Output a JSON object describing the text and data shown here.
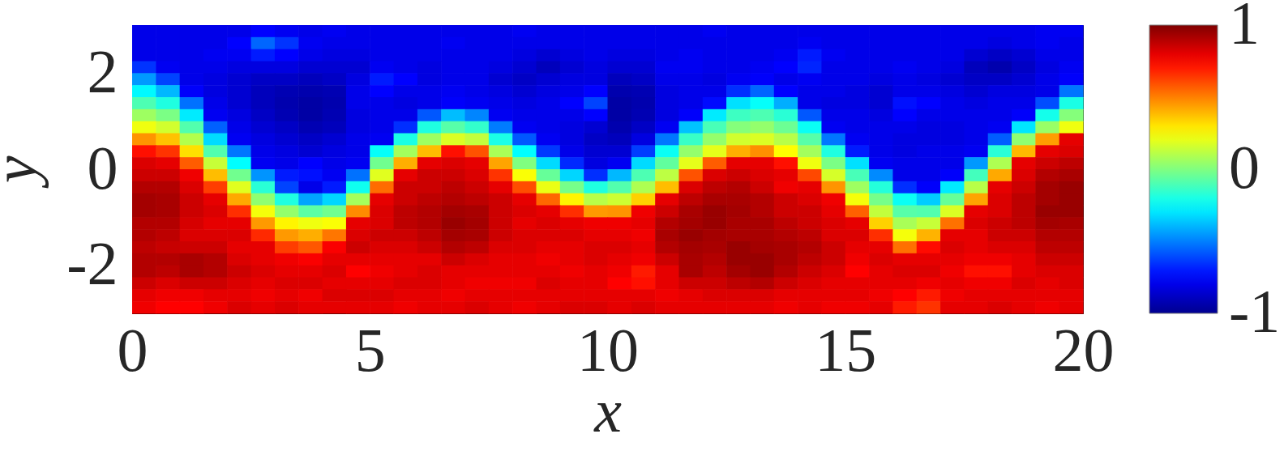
{
  "chart_data": {
    "type": "heatmap",
    "xlabel": "x",
    "ylabel": "y",
    "xlim": [
      0,
      20
    ],
    "xticks": [
      0,
      5,
      10,
      15,
      20
    ],
    "ylim": [
      -3,
      3
    ],
    "yticks": [
      -2,
      0,
      2
    ],
    "clim": [
      -1,
      1
    ],
    "cticks": [
      -1,
      0,
      1
    ],
    "x": [
      0.25,
      0.75,
      1.25,
      1.75,
      2.25,
      2.75,
      3.25,
      3.75,
      4.25,
      4.75,
      5.25,
      5.75,
      6.25,
      6.75,
      7.25,
      7.75,
      8.25,
      8.75,
      9.25,
      9.75,
      10.25,
      10.75,
      11.25,
      11.75,
      12.25,
      12.75,
      13.25,
      13.75,
      14.25,
      14.75,
      15.25,
      15.75,
      16.25,
      16.75,
      17.25,
      17.75,
      18.25,
      18.75,
      19.25,
      19.75
    ],
    "y": [
      2.875,
      2.625,
      2.375,
      2.125,
      1.875,
      1.625,
      1.375,
      1.125,
      0.875,
      0.625,
      0.375,
      0.125,
      -0.125,
      -0.375,
      -0.625,
      -0.875,
      -1.125,
      -1.375,
      -1.625,
      -1.875,
      -2.125,
      -2.375,
      -2.625,
      -2.875
    ],
    "cells": [
      [
        -0.8,
        -0.8,
        -0.8,
        -0.8,
        -0.8,
        -0.75,
        -0.78,
        -0.8,
        -0.78,
        -0.8,
        -0.8,
        -0.8,
        -0.8,
        -0.8,
        -0.8,
        -0.8,
        -0.78,
        -0.8,
        -0.8,
        -0.8,
        -0.8,
        -0.8,
        -0.8,
        -0.8,
        -0.78,
        -0.8,
        -0.8,
        -0.8,
        -0.8,
        -0.8,
        -0.8,
        -0.8,
        -0.8,
        -0.8,
        -0.8,
        -0.8,
        -0.8,
        -0.8,
        -0.78,
        -0.78
      ],
      [
        -0.8,
        -0.8,
        -0.8,
        -0.8,
        -0.75,
        -0.55,
        -0.65,
        -0.78,
        -0.8,
        -0.8,
        -0.8,
        -0.8,
        -0.8,
        -0.78,
        -0.8,
        -0.8,
        -0.8,
        -0.8,
        -0.8,
        -0.8,
        -0.8,
        -0.8,
        -0.8,
        -0.8,
        -0.8,
        -0.8,
        -0.8,
        -0.8,
        -0.78,
        -0.8,
        -0.8,
        -0.8,
        -0.8,
        -0.8,
        -0.8,
        -0.8,
        -0.82,
        -0.8,
        -0.78,
        -0.8
      ],
      [
        -0.8,
        -0.8,
        -0.8,
        -0.78,
        -0.78,
        -0.7,
        -0.75,
        -0.8,
        -0.82,
        -0.82,
        -0.8,
        -0.8,
        -0.8,
        -0.8,
        -0.8,
        -0.8,
        -0.82,
        -0.85,
        -0.82,
        -0.8,
        -0.82,
        -0.82,
        -0.8,
        -0.78,
        -0.8,
        -0.8,
        -0.8,
        -0.78,
        -0.7,
        -0.78,
        -0.8,
        -0.8,
        -0.8,
        -0.8,
        -0.8,
        -0.85,
        -0.88,
        -0.85,
        -0.8,
        -0.8
      ],
      [
        -0.65,
        -0.78,
        -0.8,
        -0.8,
        -0.82,
        -0.82,
        -0.82,
        -0.85,
        -0.85,
        -0.85,
        -0.78,
        -0.8,
        -0.82,
        -0.8,
        -0.8,
        -0.82,
        -0.85,
        -0.9,
        -0.85,
        -0.82,
        -0.85,
        -0.85,
        -0.78,
        -0.78,
        -0.8,
        -0.8,
        -0.78,
        -0.75,
        -0.68,
        -0.8,
        -0.8,
        -0.8,
        -0.78,
        -0.8,
        -0.82,
        -0.9,
        -0.93,
        -0.88,
        -0.82,
        -0.78
      ],
      [
        -0.45,
        -0.62,
        -0.8,
        -0.82,
        -0.85,
        -0.88,
        -0.88,
        -0.9,
        -0.88,
        -0.82,
        -0.7,
        -0.75,
        -0.82,
        -0.8,
        -0.8,
        -0.85,
        -0.88,
        -0.85,
        -0.82,
        -0.82,
        -0.9,
        -0.88,
        -0.8,
        -0.8,
        -0.82,
        -0.78,
        -0.76,
        -0.8,
        -0.78,
        -0.8,
        -0.8,
        -0.82,
        -0.8,
        -0.82,
        -0.85,
        -0.88,
        -0.88,
        -0.85,
        -0.8,
        -0.76
      ],
      [
        -0.26,
        -0.39,
        -0.76,
        -0.82,
        -0.85,
        -0.9,
        -0.92,
        -0.93,
        -0.92,
        -0.8,
        -0.75,
        -0.8,
        -0.8,
        -0.78,
        -0.8,
        -0.82,
        -0.85,
        -0.82,
        -0.8,
        -0.75,
        -0.93,
        -0.92,
        -0.82,
        -0.8,
        -0.8,
        -0.66,
        -0.55,
        -0.75,
        -0.8,
        -0.8,
        -0.82,
        -0.85,
        -0.8,
        -0.8,
        -0.82,
        -0.85,
        -0.82,
        -0.82,
        -0.8,
        -0.52
      ],
      [
        -0.1,
        -0.19,
        -0.53,
        -0.8,
        -0.85,
        -0.9,
        -0.93,
        -0.95,
        -0.93,
        -0.8,
        -0.8,
        -0.82,
        -0.8,
        -0.76,
        -0.78,
        -0.8,
        -0.82,
        -0.8,
        -0.75,
        -0.62,
        -0.95,
        -0.93,
        -0.82,
        -0.8,
        -0.73,
        -0.31,
        -0.24,
        -0.41,
        -0.8,
        -0.82,
        -0.82,
        -0.85,
        -0.72,
        -0.75,
        -0.8,
        -0.82,
        -0.8,
        -0.8,
        -0.6,
        -0.2
      ],
      [
        0.06,
        -0.01,
        -0.29,
        -0.78,
        -0.82,
        -0.88,
        -0.92,
        -0.95,
        -0.92,
        -0.82,
        -0.8,
        -0.8,
        -0.58,
        -0.38,
        -0.49,
        -0.78,
        -0.8,
        -0.8,
        -0.8,
        -0.75,
        -0.95,
        -0.92,
        -0.82,
        -0.76,
        -0.29,
        -0.13,
        -0.1,
        -0.17,
        -0.58,
        -0.8,
        -0.8,
        -0.82,
        -0.75,
        -0.8,
        -0.8,
        -0.8,
        -0.8,
        -0.76,
        -0.21,
        0.01
      ],
      [
        0.22,
        0.16,
        -0.09,
        -0.56,
        -0.8,
        -0.85,
        -0.88,
        -0.92,
        -0.9,
        -0.82,
        -0.8,
        -0.66,
        -0.19,
        -0.08,
        -0.15,
        -0.51,
        -0.78,
        -0.8,
        -0.82,
        -0.85,
        -0.93,
        -0.88,
        -0.78,
        -0.37,
        -0.11,
        0.01,
        0.04,
        -0.04,
        -0.23,
        -0.78,
        -0.8,
        -0.8,
        -0.8,
        -0.82,
        -0.82,
        -0.8,
        -0.78,
        -0.3,
        0.05,
        0.22
      ],
      [
        0.46,
        0.37,
        0.1,
        -0.32,
        -0.78,
        -0.82,
        -0.85,
        -0.88,
        -0.85,
        -0.8,
        -0.78,
        -0.2,
        0.06,
        0.18,
        0.13,
        -0.2,
        -0.58,
        -0.78,
        -0.82,
        -0.88,
        -0.9,
        -0.82,
        -0.52,
        -0.14,
        0.04,
        0.16,
        0.18,
        0.11,
        -0.08,
        -0.52,
        -0.78,
        -0.8,
        -0.82,
        -0.82,
        -0.82,
        -0.8,
        -0.57,
        0.03,
        0.44,
        0.8
      ],
      [
        0.72,
        0.65,
        0.31,
        -0.09,
        -0.52,
        -0.8,
        -0.82,
        -0.85,
        -0.82,
        -0.8,
        -0.24,
        0.07,
        0.38,
        0.72,
        0.59,
        0.08,
        -0.25,
        -0.64,
        -0.8,
        -0.85,
        -0.85,
        -0.63,
        -0.23,
        0.04,
        0.2,
        0.41,
        0.47,
        0.25,
        0.07,
        -0.19,
        -0.7,
        -0.8,
        -0.82,
        -0.8,
        -0.8,
        -0.78,
        -0.17,
        0.39,
        0.8,
        0.82
      ],
      [
        0.82,
        0.8,
        0.57,
        0.14,
        -0.25,
        -0.78,
        -0.8,
        -0.75,
        -0.8,
        -0.78,
        -0.03,
        0.41,
        0.8,
        0.82,
        0.8,
        0.43,
        0,
        -0.32,
        -0.67,
        -0.82,
        -0.78,
        -0.32,
        -0.06,
        0.2,
        0.57,
        0.8,
        0.8,
        0.72,
        0.22,
        -0.01,
        -0.31,
        -0.78,
        -0.8,
        -0.8,
        -0.8,
        -0.45,
        0.09,
        0.8,
        0.85,
        0.88
      ],
      [
        0.85,
        0.85,
        0.78,
        0.38,
        -0.03,
        -0.46,
        -0.7,
        -0.72,
        -0.78,
        -0.53,
        0.19,
        0.8,
        0.85,
        0.85,
        0.82,
        0.65,
        0.24,
        -0.05,
        -0.33,
        -0.66,
        -0.39,
        -0.1,
        0.12,
        0.59,
        0.82,
        0.85,
        0.82,
        0.8,
        0.61,
        0.17,
        -0.11,
        -0.48,
        -0.8,
        -0.8,
        -0.76,
        -0.12,
        0.42,
        0.82,
        0.9,
        0.92
      ],
      [
        0.9,
        0.9,
        0.82,
        0.63,
        0.19,
        -0.17,
        -0.62,
        -0.8,
        -0.7,
        -0.22,
        0.54,
        0.85,
        0.85,
        0.88,
        0.85,
        0.8,
        0.6,
        0.21,
        -0.02,
        -0.19,
        -0.09,
        0.09,
        0.38,
        0.82,
        0.88,
        0.9,
        0.85,
        0.78,
        0.8,
        0.46,
        0.06,
        -0.18,
        -0.66,
        -0.76,
        -0.29,
        0.11,
        0.8,
        0.85,
        0.93,
        0.95
      ],
      [
        0.93,
        0.92,
        0.85,
        0.8,
        0.42,
        0.03,
        -0.19,
        -0.43,
        -0.33,
        0.07,
        0.8,
        0.85,
        0.88,
        0.9,
        0.88,
        0.85,
        0.8,
        0.55,
        0.27,
        0.11,
        0.15,
        0.34,
        0.8,
        0.88,
        0.92,
        0.92,
        0.9,
        0.85,
        0.82,
        0.78,
        0.23,
        -0.02,
        -0.23,
        -0.35,
        -0.05,
        0.43,
        0.82,
        0.88,
        0.93,
        0.95
      ],
      [
        0.93,
        0.92,
        0.85,
        0.82,
        0.66,
        0.23,
        0.04,
        -0.07,
        -0.03,
        0.48,
        0.82,
        0.88,
        0.9,
        0.93,
        0.92,
        0.85,
        0.82,
        0.8,
        0.66,
        0.45,
        0.46,
        0.78,
        0.85,
        0.92,
        0.95,
        0.93,
        0.9,
        0.85,
        0.85,
        0.8,
        0.56,
        0.13,
        -0.08,
        -0.09,
        0.18,
        0.8,
        0.82,
        0.88,
        0.95,
        0.95
      ],
      [
        0.9,
        0.9,
        0.83,
        0.8,
        0.8,
        0.45,
        0.27,
        0.22,
        0.24,
        0.8,
        0.82,
        0.88,
        0.9,
        0.95,
        0.93,
        0.85,
        0.8,
        0.82,
        0.8,
        0.78,
        0.78,
        0.8,
        0.9,
        0.93,
        0.95,
        0.92,
        0.92,
        0.88,
        0.85,
        0.82,
        0.8,
        0.34,
        0.08,
        0.14,
        0.53,
        0.82,
        0.85,
        0.88,
        0.93,
        0.92
      ],
      [
        0.9,
        0.88,
        0.82,
        0.82,
        0.82,
        0.67,
        0.45,
        0.41,
        0.52,
        0.82,
        0.85,
        0.85,
        0.88,
        0.93,
        0.92,
        0.85,
        0.82,
        0.82,
        0.82,
        0.8,
        0.8,
        0.78,
        0.92,
        0.95,
        0.93,
        0.92,
        0.92,
        0.9,
        0.88,
        0.82,
        0.82,
        0.66,
        0.23,
        0.4,
        0.8,
        0.8,
        0.85,
        0.85,
        0.9,
        0.9
      ],
      [
        0.88,
        0.86,
        0.85,
        0.85,
        0.8,
        0.8,
        0.63,
        0.58,
        0.76,
        0.85,
        0.82,
        0.82,
        0.85,
        0.9,
        0.88,
        0.82,
        0.82,
        0.8,
        0.8,
        0.82,
        0.82,
        0.8,
        0.9,
        0.93,
        0.92,
        0.95,
        0.93,
        0.92,
        0.9,
        0.85,
        0.8,
        0.8,
        0.53,
        0.73,
        0.82,
        0.8,
        0.82,
        0.82,
        0.88,
        0.88
      ],
      [
        0.9,
        0.9,
        0.92,
        0.9,
        0.82,
        0.8,
        0.78,
        0.76,
        0.8,
        0.8,
        0.8,
        0.8,
        0.8,
        0.85,
        0.82,
        0.8,
        0.8,
        0.78,
        0.8,
        0.82,
        0.8,
        0.78,
        0.85,
        0.92,
        0.9,
        0.95,
        0.95,
        0.92,
        0.88,
        0.85,
        0.78,
        0.82,
        0.8,
        0.8,
        0.8,
        0.78,
        0.78,
        0.8,
        0.85,
        0.85
      ],
      [
        0.9,
        0.88,
        0.92,
        0.9,
        0.85,
        0.82,
        0.8,
        0.8,
        0.82,
        0.75,
        0.78,
        0.8,
        0.82,
        0.8,
        0.8,
        0.8,
        0.8,
        0.8,
        0.78,
        0.8,
        0.78,
        0.7,
        0.8,
        0.92,
        0.88,
        0.93,
        0.95,
        0.9,
        0.85,
        0.82,
        0.75,
        0.8,
        0.82,
        0.82,
        0.78,
        0.72,
        0.72,
        0.8,
        0.82,
        0.82
      ],
      [
        0.85,
        0.82,
        0.85,
        0.85,
        0.82,
        0.8,
        0.82,
        0.82,
        0.8,
        0.8,
        0.8,
        0.82,
        0.82,
        0.8,
        0.78,
        0.78,
        0.78,
        0.82,
        0.8,
        0.8,
        0.75,
        0.72,
        0.8,
        0.85,
        0.85,
        0.88,
        0.9,
        0.85,
        0.82,
        0.8,
        0.8,
        0.8,
        0.8,
        0.78,
        0.8,
        0.78,
        0.78,
        0.82,
        0.8,
        0.82
      ],
      [
        0.8,
        0.78,
        0.78,
        0.8,
        0.8,
        0.78,
        0.8,
        0.78,
        0.82,
        0.82,
        0.82,
        0.8,
        0.8,
        0.78,
        0.8,
        0.8,
        0.8,
        0.8,
        0.8,
        0.8,
        0.8,
        0.8,
        0.78,
        0.8,
        0.82,
        0.82,
        0.82,
        0.8,
        0.8,
        0.8,
        0.8,
        0.78,
        0.75,
        0.7,
        0.78,
        0.8,
        0.8,
        0.8,
        0.8,
        0.8
      ],
      [
        0.78,
        0.75,
        0.75,
        0.78,
        0.82,
        0.8,
        0.82,
        0.8,
        0.8,
        0.8,
        0.8,
        0.78,
        0.8,
        0.8,
        0.82,
        0.8,
        0.78,
        0.8,
        0.82,
        0.82,
        0.8,
        0.82,
        0.8,
        0.8,
        0.8,
        0.8,
        0.8,
        0.78,
        0.8,
        0.78,
        0.78,
        0.8,
        0.7,
        0.65,
        0.8,
        0.8,
        0.82,
        0.8,
        0.78,
        0.8
      ]
    ]
  }
}
